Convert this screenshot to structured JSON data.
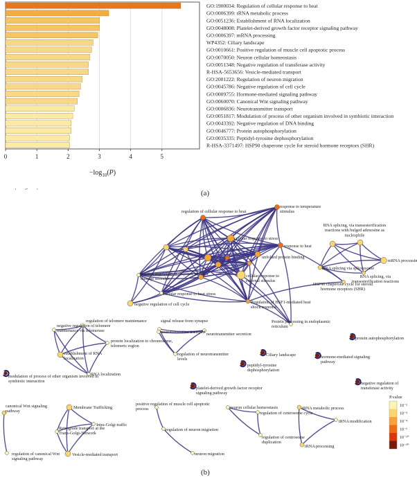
{
  "chart_data": [
    {
      "type": "bar",
      "orientation": "horizontal",
      "panel_label": "(a)",
      "title": "",
      "xlabel": "-log10(P)",
      "ylabel": "",
      "xlim": [
        0,
        6.2
      ],
      "xticks": [
        0,
        1,
        2,
        3,
        4,
        5
      ],
      "grid": "vertical",
      "categories": [
        "GO:1900034: Regulation of cellular response to heat",
        "GO:0006399: tRNA metabolic process",
        "GO:0051236: Establishment of RNA localization",
        "GO:0048008: Platelet-derived growth factor receptor signaling pathway",
        "GO:0006397: mRNA processing",
        "WP4352: Ciliary landscape",
        "GO:0010661: Positive regulation of muscle cell apoptotic process",
        "GO:0070050: Neuron cellular homeostasis",
        "GO:0051348: Negative regulation of transferase activity",
        "R-HSA-5653656: Vesicle-mediated transport",
        "GO:2001222: Regulation of neuron migration",
        "GO:0045786: Negative regulation of cell cycle",
        "GO:0009755: Hormone-mediated signaling pathway",
        "GO:0060070: Canonical Wnt signaling pathway",
        "GO:0006836: Neurotransmitter transport",
        "GO:0051817: Modulation of process of other organism involved in symbiotic interaction",
        "GO:0043392: Negative regulation of DNA binding",
        "GO:0046777: Protein autophosphorylation",
        "GO:0035335: Peptidyl-tyrosine dephosphorylation",
        "R-HSA-3371497: HSP90 chaperone cycle for steroid hormone receptors (SHR)"
      ],
      "values": [
        5.6,
        3.3,
        3.0,
        3.0,
        2.95,
        2.8,
        2.75,
        2.7,
        2.65,
        2.65,
        2.45,
        2.4,
        2.35,
        2.3,
        2.2,
        2.15,
        2.1,
        2.1,
        2.05,
        2.05
      ],
      "colors": {
        "strong": "#e8761f",
        "medium": "#f3ab42",
        "weak": "#f7d888",
        "weakest": "#fbe9a6"
      }
    },
    {
      "type": "network",
      "panel_label": "(b)",
      "legend": {
        "title": "P.value",
        "placement": "right",
        "entries": [
          {
            "label": "10⁻²",
            "color": "#fdf3b2"
          },
          {
            "label": "10⁻³",
            "color": "#fbd56f"
          },
          {
            "label": "10⁻⁴",
            "color": "#f7a33b"
          },
          {
            "label": "10⁻⁶",
            "color": "#ef6b18"
          },
          {
            "label": "10⁻¹⁰",
            "color": "#d9380e"
          },
          {
            "label": "10⁻²⁰",
            "color": "#7b1a0a"
          }
        ]
      },
      "node_labels": [
        {
          "id": "reg_heat",
          "text": "regulation of cellular response to heat"
        },
        {
          "id": "resp_temp",
          "text": "response to temperature stimulus"
        },
        {
          "id": "cell_stress",
          "text": "cellular response to stress"
        },
        {
          "id": "resp_heat",
          "text": "response to heat"
        },
        {
          "id": "prot_bind",
          "text": "unfolded protein binding"
        },
        {
          "id": "ext_stim",
          "text": "cellular response to external stimulus"
        },
        {
          "id": "dna_damage",
          "text": "positive regulation of response to DNA damage stimulus"
        },
        {
          "id": "cell_heat",
          "text": "cellular response to heat stress"
        },
        {
          "id": "hsf1",
          "text": "Regulation of HSF1-mediated heat shock response"
        },
        {
          "id": "er",
          "text": "Protein processing in endoplasmic reticulum"
        },
        {
          "id": "neg_cycle",
          "text": "negative regulation of cell cycle"
        },
        {
          "id": "synapse",
          "text": "signal release from synapse"
        },
        {
          "id": "nt_transport",
          "text": "neurotransmitter transport"
        },
        {
          "id": "nt_secretion",
          "text": "neurotransmitter secretion"
        },
        {
          "id": "nt_levels",
          "text": "regulation of neurotransmitter levels"
        },
        {
          "id": "rna_spl1",
          "text": "RNA splicing, via transesterification reactions with bulged adenosine as nucleophile"
        },
        {
          "id": "mrna_spl",
          "text": "mRNA splicing, via spliceosome"
        },
        {
          "id": "mrna_proc",
          "text": "mRNA processing"
        },
        {
          "id": "rna_spl2",
          "text": "RNA splicing via spliceosome"
        },
        {
          "id": "rna_spl3",
          "text": "RNA splicing, via transesterification reactions"
        },
        {
          "id": "hsp90",
          "text": "HSP90 chaperone cycle for steroid hormone receptors (SHR)"
        },
        {
          "id": "neg_telo",
          "text": "negative regulation of telomere maintenance via telomerase"
        },
        {
          "id": "telo",
          "text": "regulation of telomere maintenance"
        },
        {
          "id": "prot_loc",
          "text": "protein localization to chromosome, telomeric region"
        },
        {
          "id": "est_rna",
          "text": "establishment of RNA localization"
        },
        {
          "id": "rna_loc",
          "text": "RNA localization"
        },
        {
          "id": "modulation",
          "text": "modulation of process of other organism involved in symbiotic interaction"
        },
        {
          "id": "cilia",
          "text": "Ciliary landscape"
        },
        {
          "id": "peptidyl",
          "text": "peptidyl-tyrosine dephosphorylation"
        },
        {
          "id": "autophos",
          "text": "protein autophosphorylation"
        },
        {
          "id": "hormone",
          "text": "hormone-mediated signaling pathway"
        },
        {
          "id": "pdgf",
          "text": "platelet-derived growth factor receptor signaling pathway"
        },
        {
          "id": "neg_transf",
          "text": "negative regulation of transferase activity"
        },
        {
          "id": "wnt",
          "text": "canonical Wnt signaling pathway"
        },
        {
          "id": "reg_wnt",
          "text": "regulation of canonical Wnt signaling pathway"
        },
        {
          "id": "membrane",
          "text": "Membrane Trafficking"
        },
        {
          "id": "golgi",
          "text": "Intra-Golgi traffic"
        },
        {
          "id": "retro",
          "text": "Retrograde transport at the Trans-Golgi-Network"
        },
        {
          "id": "vesicle",
          "text": "Vesicle-mediated transport"
        },
        {
          "id": "muscle",
          "text": "positive regulation of muscle cell apoptotic process"
        },
        {
          "id": "reg_migr",
          "text": "regulation of neuron migration"
        },
        {
          "id": "migr",
          "text": "neuron migration"
        },
        {
          "id": "homeo",
          "text": "neuron cellular homeostasis"
        },
        {
          "id": "centro",
          "text": "regulation of centrosome cycle"
        },
        {
          "id": "centro_dup",
          "text": "regulation of centrosome duplication"
        },
        {
          "id": "trna",
          "text": "tRNA metabolic process"
        },
        {
          "id": "trna_mod",
          "text": "tRNA modification"
        },
        {
          "id": "trna_proc",
          "text": "tRNA processing"
        }
      ]
    }
  ]
}
